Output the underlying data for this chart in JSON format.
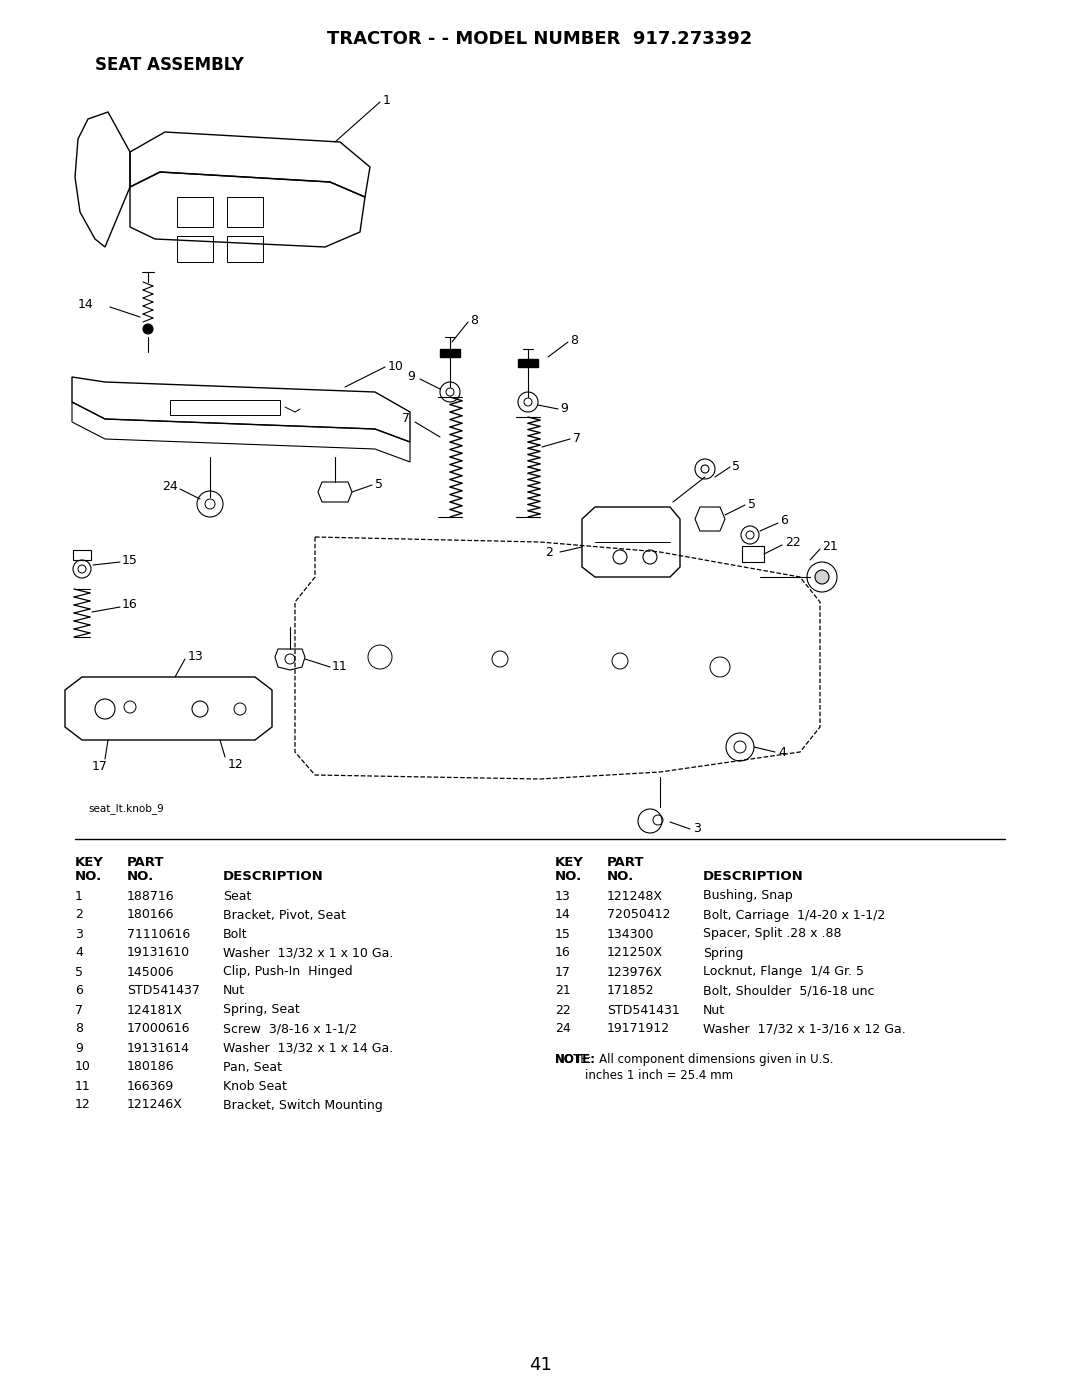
{
  "title_line1": "TRACTOR - - MODEL NUMBER  917.273392",
  "title_line2": "SEAT ASSEMBLY",
  "image_label": "seat_lt.knob_9",
  "page_number": "41",
  "bg_color": "#ffffff",
  "left_table_rows": [
    [
      "1",
      "188716",
      "Seat"
    ],
    [
      "2",
      "180166",
      "Bracket, Pivot, Seat"
    ],
    [
      "3",
      "71110616",
      "Bolt"
    ],
    [
      "4",
      "19131610",
      "Washer  13/32 x 1 x 10 Ga."
    ],
    [
      "5",
      "145006",
      "Clip, Push-In  Hinged"
    ],
    [
      "6",
      "STD541437",
      "Nut"
    ],
    [
      "7",
      "124181X",
      "Spring, Seat"
    ],
    [
      "8",
      "17000616",
      "Screw  3/8-16 x 1-1/2"
    ],
    [
      "9",
      "19131614",
      "Washer  13/32 x 1 x 14 Ga."
    ],
    [
      "10",
      "180186",
      "Pan, Seat"
    ],
    [
      "11",
      "166369",
      "Knob Seat"
    ],
    [
      "12",
      "121246X",
      "Bracket, Switch Mounting"
    ]
  ],
  "right_table_rows": [
    [
      "13",
      "121248X",
      "Bushing, Snap"
    ],
    [
      "14",
      "72050412",
      "Bolt, Carriage  1/4-20 x 1-1/2"
    ],
    [
      "15",
      "134300",
      "Spacer, Split .28 x .88"
    ],
    [
      "16",
      "121250X",
      "Spring"
    ],
    [
      "17",
      "123976X",
      "Locknut, Flange  1/4 Gr. 5"
    ],
    [
      "21",
      "171852",
      "Bolt, Shoulder  5/16-18 unc"
    ],
    [
      "22",
      "STD541431",
      "Nut"
    ],
    [
      "24",
      "19171912",
      "Washer  17/32 x 1-3/16 x 12 Ga."
    ]
  ],
  "note_line1": "NOTE:  All component dimensions given in U.S.",
  "note_line2": "        inches 1 inch = 25.4 mm"
}
